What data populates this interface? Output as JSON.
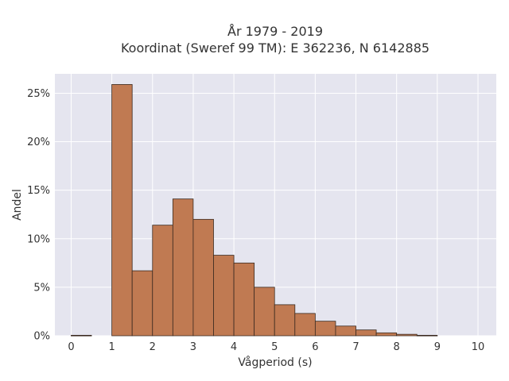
{
  "chart_data": {
    "type": "bar",
    "title": [
      "År 1979 - 2019",
      "Koordinat (Sweref 99 TM): E 362236, N 6142885"
    ],
    "xlabel": "Vågperiod (s)",
    "ylabel": "Andel",
    "bin_width": 0.5,
    "bin_starts": [
      0,
      0.5,
      1,
      1.5,
      2,
      2.5,
      3,
      3.5,
      4,
      4.5,
      5,
      5.5,
      6,
      6.5,
      7,
      7.5,
      8,
      8.5,
      9,
      9.5
    ],
    "values": [
      0.05,
      0,
      25.9,
      6.7,
      11.4,
      14.1,
      12.0,
      8.3,
      7.5,
      5.0,
      3.2,
      2.3,
      1.5,
      1.0,
      0.6,
      0.3,
      0.15,
      0.05,
      0,
      0
    ],
    "xlim": [
      -0.4,
      10.45
    ],
    "ylim": [
      0,
      27
    ],
    "xticks": [
      0,
      1,
      2,
      3,
      4,
      5,
      6,
      7,
      8,
      9,
      10
    ],
    "xtick_labels": [
      "0",
      "1",
      "2",
      "3",
      "4",
      "5",
      "6",
      "7",
      "8",
      "9",
      "10"
    ],
    "yticks": [
      0,
      5,
      10,
      15,
      20,
      25
    ],
    "ytick_labels": [
      "0%",
      "5%",
      "10%",
      "15%",
      "20%",
      "25%"
    ],
    "grid": true,
    "colors": {
      "bar": "#c07a52",
      "bar_edge": "#3a2a20",
      "plot_bg": "#e5e5ef",
      "grid": "#ffffff"
    }
  }
}
